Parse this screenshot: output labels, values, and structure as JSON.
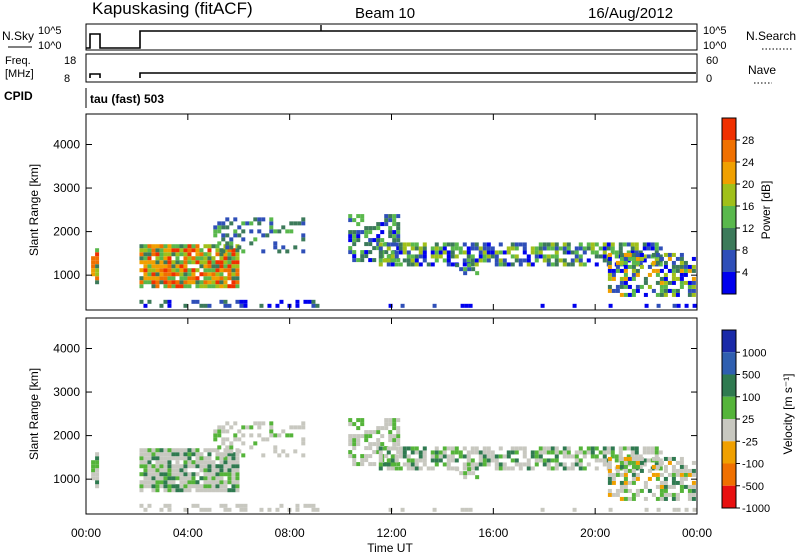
{
  "header": {
    "station": "Kapuskasing (fitACF)",
    "beam": "Beam 10",
    "date": "16/Aug/2012"
  },
  "status_panels": {
    "nsky": {
      "label": "N.Sky",
      "left_ticks": [
        "10^5",
        "10^0"
      ],
      "right_label": "N.Search",
      "right_ticks": [
        "10^5",
        "10^0"
      ]
    },
    "freq": {
      "label_line1": "Freq.",
      "label_line2": "[MHz]",
      "left_ticks": [
        "18",
        "8"
      ],
      "right_label": "Nave",
      "right_ticks": [
        "60",
        "0"
      ]
    },
    "cpid": {
      "label": "CPID",
      "value": "tau (fast) 503"
    }
  },
  "chart_data": [
    {
      "type": "heatmap",
      "name": "power",
      "xlabel": "",
      "ylabel": "Slant Range [km]",
      "x_ticks": [
        "00:00",
        "04:00",
        "08:00",
        "12:00",
        "16:00",
        "20:00",
        "00:00"
      ],
      "x_range_hours": [
        0,
        24
      ],
      "y_ticks": [
        1000,
        2000,
        3000,
        4000
      ],
      "y_range_km": [
        200,
        4700
      ],
      "colorbar": {
        "label": "Power [dB]",
        "ticks": [
          "4",
          "8",
          "12",
          "16",
          "20",
          "24",
          "28"
        ],
        "colors": [
          "#0000ee",
          "#2f4fb8",
          "#3c7a5a",
          "#59b84c",
          "#a0c01a",
          "#f0a000",
          "#f07000",
          "#f03000"
        ]
      },
      "grid": false
    },
    {
      "type": "heatmap",
      "name": "velocity",
      "xlabel": "Time UT",
      "ylabel": "Slant Range [km]",
      "x_ticks": [
        "00:00",
        "04:00",
        "08:00",
        "12:00",
        "16:00",
        "20:00",
        "00:00"
      ],
      "x_range_hours": [
        0,
        24
      ],
      "y_ticks": [
        1000,
        2000,
        3000,
        4000
      ],
      "y_range_km": [
        200,
        4700
      ],
      "colorbar": {
        "label": "Velocity [m s⁻¹]",
        "ticks": [
          "1000",
          "500",
          "100",
          "25",
          "-25",
          "-100",
          "-500",
          "-1000"
        ],
        "colors": [
          "#1a2aa8",
          "#2f5fb0",
          "#2f7a50",
          "#55b43a",
          "#c8c8c0",
          "#f0a000",
          "#f07000",
          "#e81010"
        ]
      },
      "grid": false
    }
  ]
}
